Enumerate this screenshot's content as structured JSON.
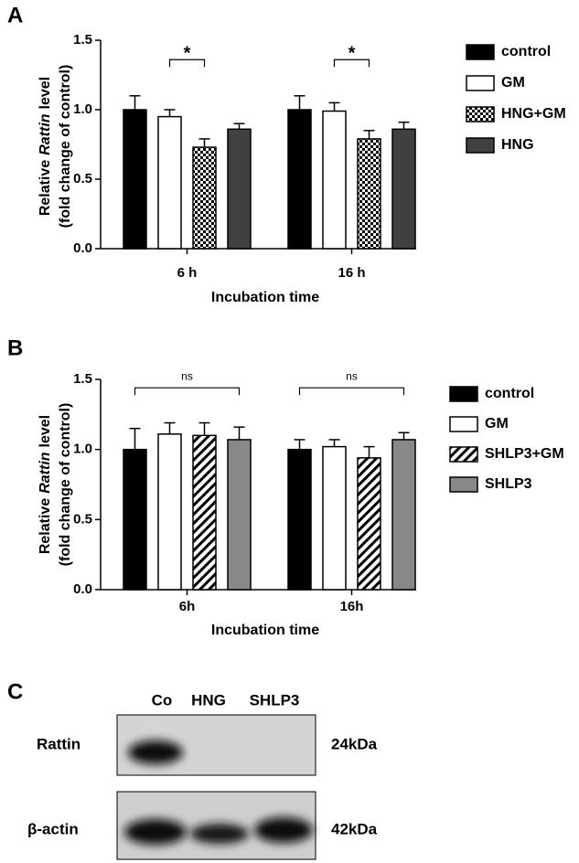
{
  "chart_data": [
    {
      "type": "bar",
      "panel": "A",
      "ylabel": [
        "Relative",
        "Rattin",
        "level",
        "(fold change of control)"
      ],
      "xlabel": "Incubation time",
      "categories": [
        "6 h",
        "16 h"
      ],
      "series": [
        {
          "name": "control",
          "color": "#000000",
          "values": [
            1.0,
            1.0
          ],
          "errors": [
            0.1,
            0.1
          ]
        },
        {
          "name": "GM",
          "color": "#ffffff",
          "values": [
            0.95,
            0.99
          ],
          "errors": [
            0.05,
            0.06
          ]
        },
        {
          "name": "HNG+GM",
          "color": "#000000",
          "pattern": "checker",
          "values": [
            0.73,
            0.79
          ],
          "errors": [
            0.06,
            0.06
          ]
        },
        {
          "name": "HNG",
          "color": "#404040",
          "values": [
            0.86,
            0.86
          ],
          "errors": [
            0.04,
            0.05
          ]
        }
      ],
      "annotations": [
        "*",
        "*"
      ],
      "ylim": [
        0,
        1.5
      ],
      "yticks": [
        {
          "value": 0,
          "label": "0.0"
        },
        0.5,
        {
          "value": 1,
          "label": "1.0"
        },
        1.5
      ]
    },
    {
      "type": "bar",
      "panel": "B",
      "ylabel": [
        "Relative",
        "Rattin",
        "level",
        "(fold change of control)"
      ],
      "xlabel": "Incubation time",
      "categories": [
        "6h",
        "16h"
      ],
      "series": [
        {
          "name": "control",
          "color": "#000000",
          "values": [
            1.0,
            1.0
          ],
          "errors": [
            0.15,
            0.07
          ]
        },
        {
          "name": "GM",
          "color": "#ffffff",
          "values": [
            1.11,
            1.02
          ],
          "errors": [
            0.08,
            0.05
          ]
        },
        {
          "name": "SHLP3+GM",
          "color": "#000000",
          "pattern": "hatch",
          "values": [
            1.1,
            0.94
          ],
          "errors": [
            0.09,
            0.08
          ]
        },
        {
          "name": "SHLP3",
          "color": "#888888",
          "values": [
            1.07,
            1.07
          ],
          "errors": [
            0.09,
            0.05
          ]
        }
      ],
      "annotations": [
        "ns",
        "ns"
      ],
      "ylim": [
        0,
        1.5
      ],
      "yticks": [
        {
          "value": 0,
          "label": "0.0"
        },
        0.5,
        {
          "value": 1,
          "label": "1.0"
        },
        1.5
      ]
    }
  ],
  "blot": {
    "panel": "C",
    "lanes": [
      "Co",
      "HNG",
      "SHLP3"
    ],
    "rows": [
      {
        "label": "Rattin",
        "size": "24kDa"
      },
      {
        "label": "β-actin",
        "size": "42kDa"
      }
    ]
  }
}
